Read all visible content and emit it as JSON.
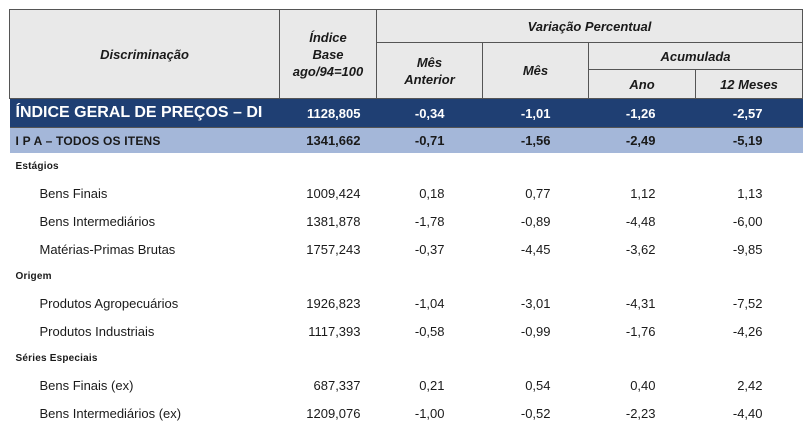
{
  "header": {
    "discriminacao": "Discriminação",
    "indice_base": [
      "Índice",
      "Base",
      "ago/94=100"
    ],
    "variacao_percentual": "Variação Percentual",
    "mes_anterior": [
      "Mês",
      "Anterior"
    ],
    "mes": "Mês",
    "acumulada": "Acumulada",
    "ano": "Ano",
    "doze_meses": "12 Meses"
  },
  "igp": {
    "label": "ÍNDICE GERAL DE PREÇOS – DI",
    "indice": "1128,805",
    "mes_anterior": "-0,34",
    "mes": "-1,01",
    "ano": "-1,26",
    "doze_meses": "-2,57"
  },
  "ipa": {
    "label": "I P A – TODOS OS ITENS",
    "indice": "1341,662",
    "mes_anterior": "-0,71",
    "mes": "-1,56",
    "ano": "-2,49",
    "doze_meses": "-5,19"
  },
  "sections": [
    {
      "title": "Estágios",
      "rows": [
        {
          "label": "Bens Finais",
          "indice": "1009,424",
          "mes_anterior": "0,18",
          "mes": "0,77",
          "ano": "1,12",
          "doze_meses": "1,13"
        },
        {
          "label": "Bens Intermediários",
          "indice": "1381,878",
          "mes_anterior": "-1,78",
          "mes": "-0,89",
          "ano": "-4,48",
          "doze_meses": "-6,00"
        },
        {
          "label": "Matérias-Primas Brutas",
          "indice": "1757,243",
          "mes_anterior": "-0,37",
          "mes": "-4,45",
          "ano": "-3,62",
          "doze_meses": "-9,85"
        }
      ]
    },
    {
      "title": "Origem",
      "rows": [
        {
          "label": "Produtos Agropecuários",
          "indice": "1926,823",
          "mes_anterior": "-1,04",
          "mes": "-3,01",
          "ano": "-4,31",
          "doze_meses": "-7,52"
        },
        {
          "label": "Produtos Industriais",
          "indice": "1117,393",
          "mes_anterior": "-0,58",
          "mes": "-0,99",
          "ano": "-1,76",
          "doze_meses": "-4,26"
        }
      ]
    },
    {
      "title": "Séries Especiais",
      "rows": [
        {
          "label": "Bens Finais (ex)",
          "indice": "687,337",
          "mes_anterior": "0,21",
          "mes": "0,54",
          "ano": "0,40",
          "doze_meses": "2,42"
        },
        {
          "label": "Bens Intermediários (ex)",
          "indice": "1209,076",
          "mes_anterior": "-1,00",
          "mes": "-0,52",
          "ano": "-2,23",
          "doze_meses": "-4,40"
        }
      ]
    }
  ]
}
